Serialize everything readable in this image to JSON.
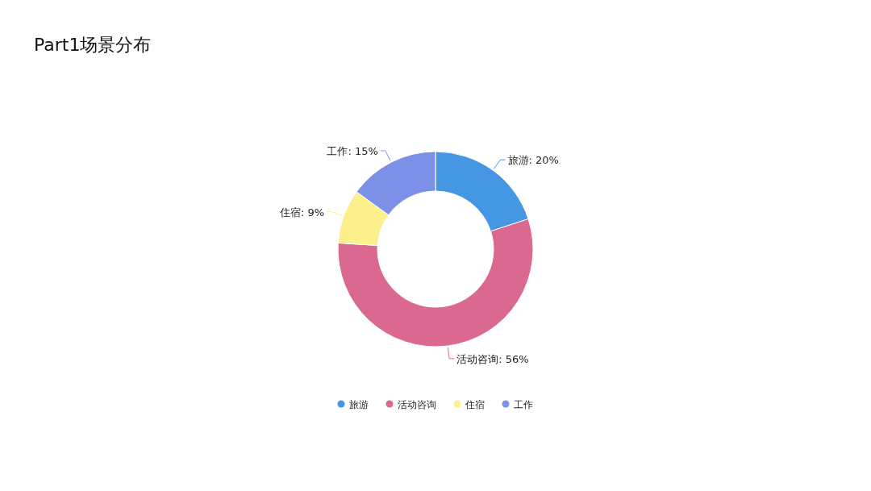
{
  "chart_data": {
    "type": "donut",
    "title": "Part1场景分布",
    "categories": [
      "旅游",
      "活动咨询",
      "住宿",
      "工作"
    ],
    "values": [
      20,
      56,
      9,
      15
    ],
    "value_labels": [
      "旅游: 20%",
      "活动咨询: 56%",
      "住宿: 9%",
      "工作: 15%"
    ],
    "colors": [
      "#4596e3",
      "#db6890",
      "#fbf08c",
      "#7d90e8"
    ],
    "legend": "bottom"
  }
}
